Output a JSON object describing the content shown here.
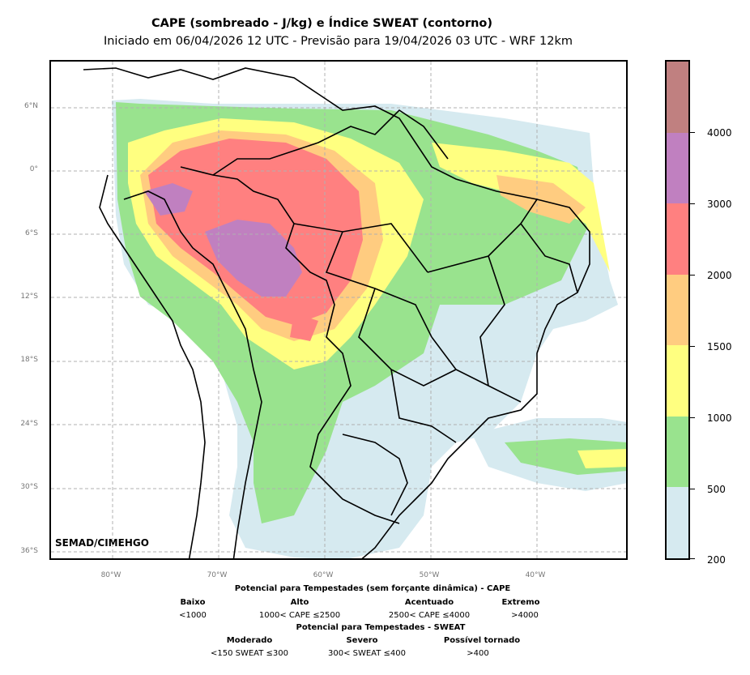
{
  "title": "CAPE (sombreado - J/kg) e Índice SWEAT (contorno)",
  "subtitle": "Iniciado em 06/04/2026 12 UTC - Previsão para 19/04/2026 03 UTC - WRF 12km",
  "credit": "SEMAD/CIMEHGO",
  "map": {
    "lat_labels": [
      "6°N",
      "0°",
      "6°S",
      "12°S",
      "18°S",
      "24°S",
      "30°S",
      "36°S"
    ],
    "lon_labels": [
      "80°W",
      "70°W",
      "60°W",
      "50°W",
      "40°W"
    ],
    "gridlines": "on",
    "gridline_style": "dashed"
  },
  "colorbar": {
    "levels": [
      "200",
      "500",
      "1000",
      "1500",
      "2000",
      "3000",
      "4000"
    ],
    "colors": [
      "#d6eaf0",
      "#99e38e",
      "#ffff80",
      "#ffcc80",
      "#ff8080",
      "#c080c0",
      "#c08080"
    ]
  },
  "legend": {
    "cape_title": "Potencial para Tempestades (sem forçante dinâmica) - CAPE",
    "cape_categories": [
      {
        "name": "Baixo",
        "range": "<1000"
      },
      {
        "name": "Alto",
        "range": "1000< CAPE ≤2500"
      },
      {
        "name": "Acentuado",
        "range": "2500< CAPE ≤4000"
      },
      {
        "name": "Extremo",
        "range": ">4000"
      }
    ],
    "sweat_title": "Potencial para Tempestades - SWEAT",
    "sweat_categories": [
      {
        "name": "Moderado",
        "range": "<150 SWEAT ≤300"
      },
      {
        "name": "Severo",
        "range": "300< SWEAT ≤400"
      },
      {
        "name": "Possível tornado",
        "range": ">400"
      }
    ]
  }
}
